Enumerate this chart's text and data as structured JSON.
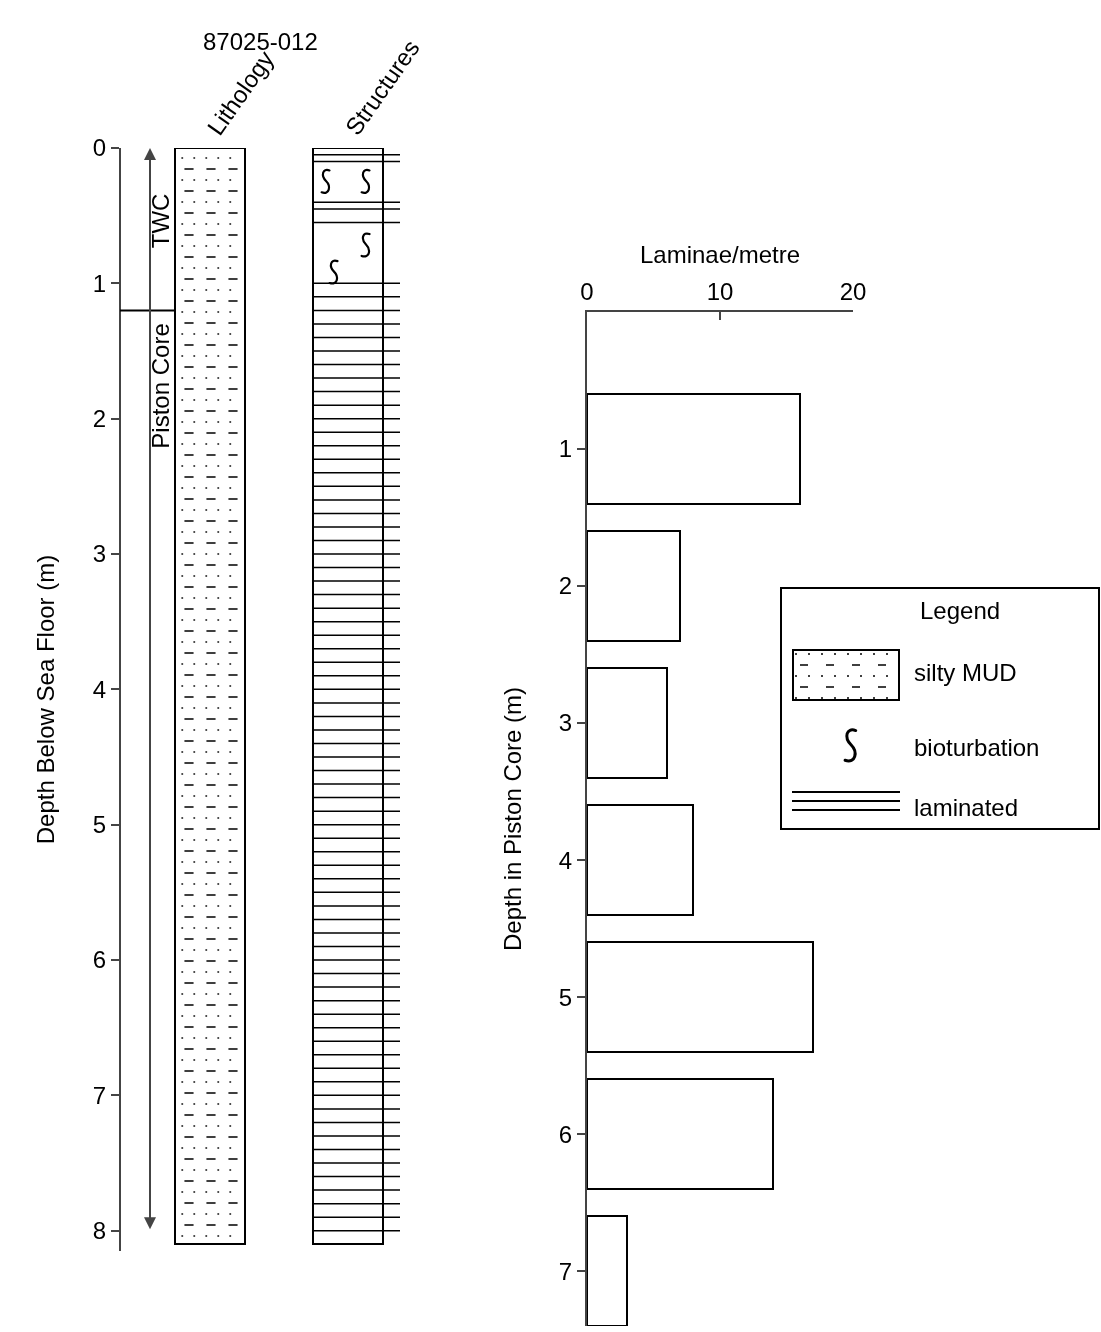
{
  "chart_data": [
    {
      "type": "bar",
      "title": "87025-012",
      "categories": [
        "Lithology",
        "Structures"
      ],
      "values": [
        8.1,
        8.1
      ],
      "color": "#ffffff",
      "ylabel": "Depth Below Sea Floor (m)",
      "ylim": [
        8.15,
        0
      ],
      "yticks": [
        0,
        1,
        2,
        3,
        4,
        5,
        6,
        7,
        8
      ],
      "ref_lines": [
        {
          "axis": "y",
          "value": 1.2
        }
      ],
      "annotations": [
        "TWC",
        "Piston Core"
      ]
    },
    {
      "type": "bar",
      "orientation": "horizontal",
      "x": [
        1,
        2,
        3,
        4,
        5,
        6,
        7
      ],
      "values": [
        16,
        7,
        6,
        8,
        17,
        14,
        3
      ],
      "color": "#ffffff",
      "xlabel": "Laminae/metre",
      "ylabel": "Depth in Piston Core (m)",
      "xlim": [
        0,
        20
      ],
      "xticks": [
        0,
        10,
        20
      ],
      "ylim": [
        7.4,
        0
      ],
      "yticks": [
        1,
        2,
        3,
        4,
        5,
        6,
        7
      ],
      "annotations": [
        "Legend",
        "silty MUD",
        "bioturbation",
        "laminated"
      ]
    }
  ]
}
